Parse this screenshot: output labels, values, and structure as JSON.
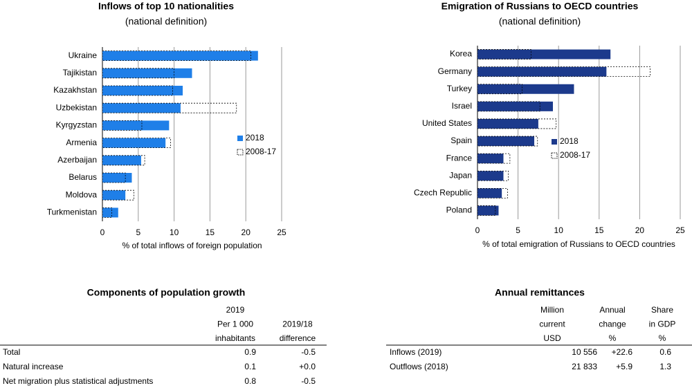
{
  "chart_data": [
    {
      "type": "bar",
      "title": "Inflows of top 10 nationalities",
      "subtitle": "(national definition)",
      "x_label": "% of total inflows of foreign population",
      "categories": [
        "Ukraine",
        "Tajikistan",
        "Kazakhstan",
        "Uzbekistan",
        "Kyrgyzstan",
        "Armenia",
        "Azerbaijan",
        "Belarus",
        "Moldova",
        "Turkmenistan"
      ],
      "series": [
        {
          "name": "2018",
          "color": "#1f7fe8",
          "style": "solid",
          "values": [
            21.7,
            12.5,
            11.2,
            10.9,
            9.3,
            8.8,
            5.4,
            4.1,
            3.2,
            2.2
          ]
        },
        {
          "name": "2008-17",
          "color": "#000000",
          "style": "dashed",
          "values": [
            20.7,
            10.0,
            9.8,
            18.7,
            5.5,
            9.5,
            5.9,
            3.2,
            4.4,
            1.3
          ]
        }
      ],
      "xlim": [
        0,
        25
      ],
      "xticks": [
        0,
        5,
        10,
        15,
        20,
        25
      ],
      "grid": true
    },
    {
      "type": "bar",
      "title": "Emigration of Russians to OECD countries",
      "subtitle": "(national definition)",
      "x_label": "% of total emigration of Russians to OECD countries",
      "categories": [
        "Korea",
        "Germany",
        "Turkey",
        "Israel",
        "United States",
        "Spain",
        "France",
        "Japan",
        "Czech Republic",
        "Poland"
      ],
      "series": [
        {
          "name": "2018",
          "color": "#1c3a8c",
          "style": "solid",
          "values": [
            16.4,
            15.9,
            11.9,
            9.3,
            7.5,
            7.0,
            3.2,
            3.2,
            3.0,
            2.6
          ]
        },
        {
          "name": "2008-17",
          "color": "#000000",
          "style": "dashed",
          "values": [
            6.6,
            21.3,
            5.5,
            7.7,
            9.7,
            7.4,
            4.0,
            3.8,
            3.7,
            2.2
          ]
        }
      ],
      "xlim": [
        0,
        25
      ],
      "xticks": [
        0,
        5,
        10,
        15,
        20,
        25
      ],
      "grid": true
    }
  ],
  "tables": [
    {
      "title": "Components of population growth",
      "columns": [
        [
          "2019",
          "Per 1 000",
          "inhabitants"
        ],
        [
          "2019/18",
          "difference"
        ]
      ],
      "rows": [
        [
          "Total",
          "0.9",
          "-0.5"
        ],
        [
          "Natural increase",
          "0.1",
          "+0.0"
        ],
        [
          "Net migration plus statistical adjustments",
          "0.8",
          "-0.5"
        ]
      ]
    },
    {
      "title": "Annual remittances",
      "columns": [
        [
          "Million",
          "current",
          "USD"
        ],
        [
          "Annual",
          "change",
          "%"
        ],
        [
          "Share",
          "in GDP",
          "%"
        ]
      ],
      "rows": [
        [
          "Inflows (2019)",
          "10 556",
          "+22.6",
          "0.6"
        ],
        [
          "Outflows (2018)",
          "21 833",
          "+5.9",
          "1.3"
        ]
      ]
    }
  ]
}
